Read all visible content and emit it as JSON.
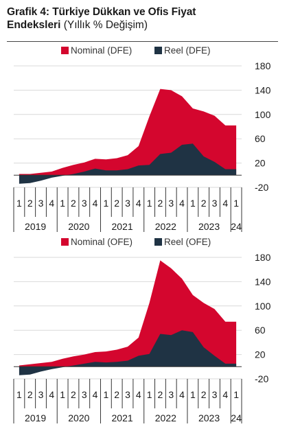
{
  "title": {
    "prefix": "Grafik 4: Türkiye Dükkan ve Ofis Fiyat",
    "line2_bold": "Endeksleri",
    "line2_rest": " (Yıllık % Değişim)"
  },
  "colors": {
    "nominal": "#d4062e",
    "real": "#1f3344",
    "grid": "#d9d9d9"
  },
  "chart_data": [
    {
      "type": "area",
      "quarters": [
        "1",
        "2",
        "3",
        "4",
        "1",
        "2",
        "3",
        "4",
        "1",
        "2",
        "3",
        "4",
        "1",
        "2",
        "3",
        "4",
        "1",
        "2",
        "3",
        "4",
        "1"
      ],
      "years": [
        "2019",
        "2020",
        "2021",
        "2022",
        "2023",
        "24"
      ],
      "yticks": [
        "180",
        "140",
        "100",
        "60",
        "20",
        "-20"
      ],
      "ylim": [
        -20,
        180
      ],
      "series": [
        {
          "name": "Nominal (DFE)",
          "values": [
            2,
            2,
            4,
            6,
            12,
            17,
            21,
            27,
            26,
            28,
            33,
            48,
            97,
            142,
            140,
            130,
            110,
            105,
            98,
            82,
            82
          ]
        },
        {
          "name": "Reel (DFE)",
          "values": [
            -14,
            -13,
            -9,
            -4,
            -1,
            2,
            6,
            11,
            8,
            8,
            10,
            16,
            17,
            35,
            37,
            50,
            52,
            31,
            22,
            10,
            10
          ]
        }
      ],
      "legend_position": "top"
    },
    {
      "type": "area",
      "quarters": [
        "1",
        "2",
        "3",
        "4",
        "1",
        "2",
        "3",
        "4",
        "1",
        "2",
        "3",
        "4",
        "1",
        "2",
        "3",
        "4",
        "1",
        "2",
        "3",
        "4",
        "1"
      ],
      "years": [
        "2019",
        "2020",
        "2021",
        "2022",
        "2023",
        "24"
      ],
      "yticks": [
        "180",
        "140",
        "100",
        "60",
        "20",
        "-20"
      ],
      "ylim": [
        -20,
        180
      ],
      "series": [
        {
          "name": "Nominal (OFE)",
          "values": [
            2,
            4,
            6,
            8,
            13,
            17,
            20,
            24,
            25,
            28,
            33,
            48,
            105,
            175,
            162,
            145,
            118,
            105,
            95,
            74,
            74
          ]
        },
        {
          "name": "Reel (OFE)",
          "values": [
            -14,
            -13,
            -8,
            -4,
            -1,
            2,
            5,
            8,
            7,
            8,
            10,
            18,
            21,
            54,
            52,
            60,
            57,
            32,
            18,
            5,
            5
          ]
        }
      ],
      "legend_position": "top"
    }
  ]
}
